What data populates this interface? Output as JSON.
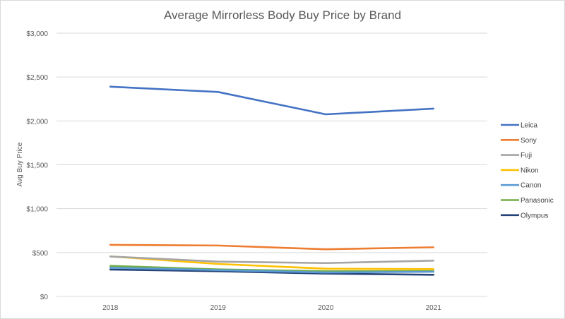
{
  "chart_data": {
    "type": "line",
    "title": "Average Mirrorless Body Buy Price by Brand",
    "xlabel": "",
    "ylabel": "Avg Buy Price",
    "categories": [
      "2018",
      "2019",
      "2020",
      "2021"
    ],
    "ylim": [
      0,
      3000
    ],
    "yticks": [
      "$0",
      "$500",
      "$1,000",
      "$1,500",
      "$2,000",
      "$2,500",
      "$3,000"
    ],
    "ytick_values": [
      0,
      500,
      1000,
      1500,
      2000,
      2500,
      3000
    ],
    "grid": true,
    "legend": "right",
    "series": [
      {
        "name": "Leica",
        "color": "#4472c4",
        "values": [
          2390,
          2330,
          2075,
          2140
        ]
      },
      {
        "name": "Sony",
        "color": "#ed7d31",
        "values": [
          588,
          580,
          537,
          560
        ]
      },
      {
        "name": "Fuji",
        "color": "#a5a5a5",
        "values": [
          455,
          397,
          380,
          408
        ]
      },
      {
        "name": "Nikon",
        "color": "#ffc000",
        "values": [
          456,
          370,
          316,
          311
        ]
      },
      {
        "name": "Canon",
        "color": "#5b9bd5",
        "values": [
          327,
          300,
          273,
          281
        ]
      },
      {
        "name": "Panasonic",
        "color": "#70ad47",
        "values": [
          348,
          308,
          287,
          289
        ]
      },
      {
        "name": "Olympus",
        "color": "#264478",
        "values": [
          306,
          287,
          260,
          247
        ]
      }
    ]
  }
}
